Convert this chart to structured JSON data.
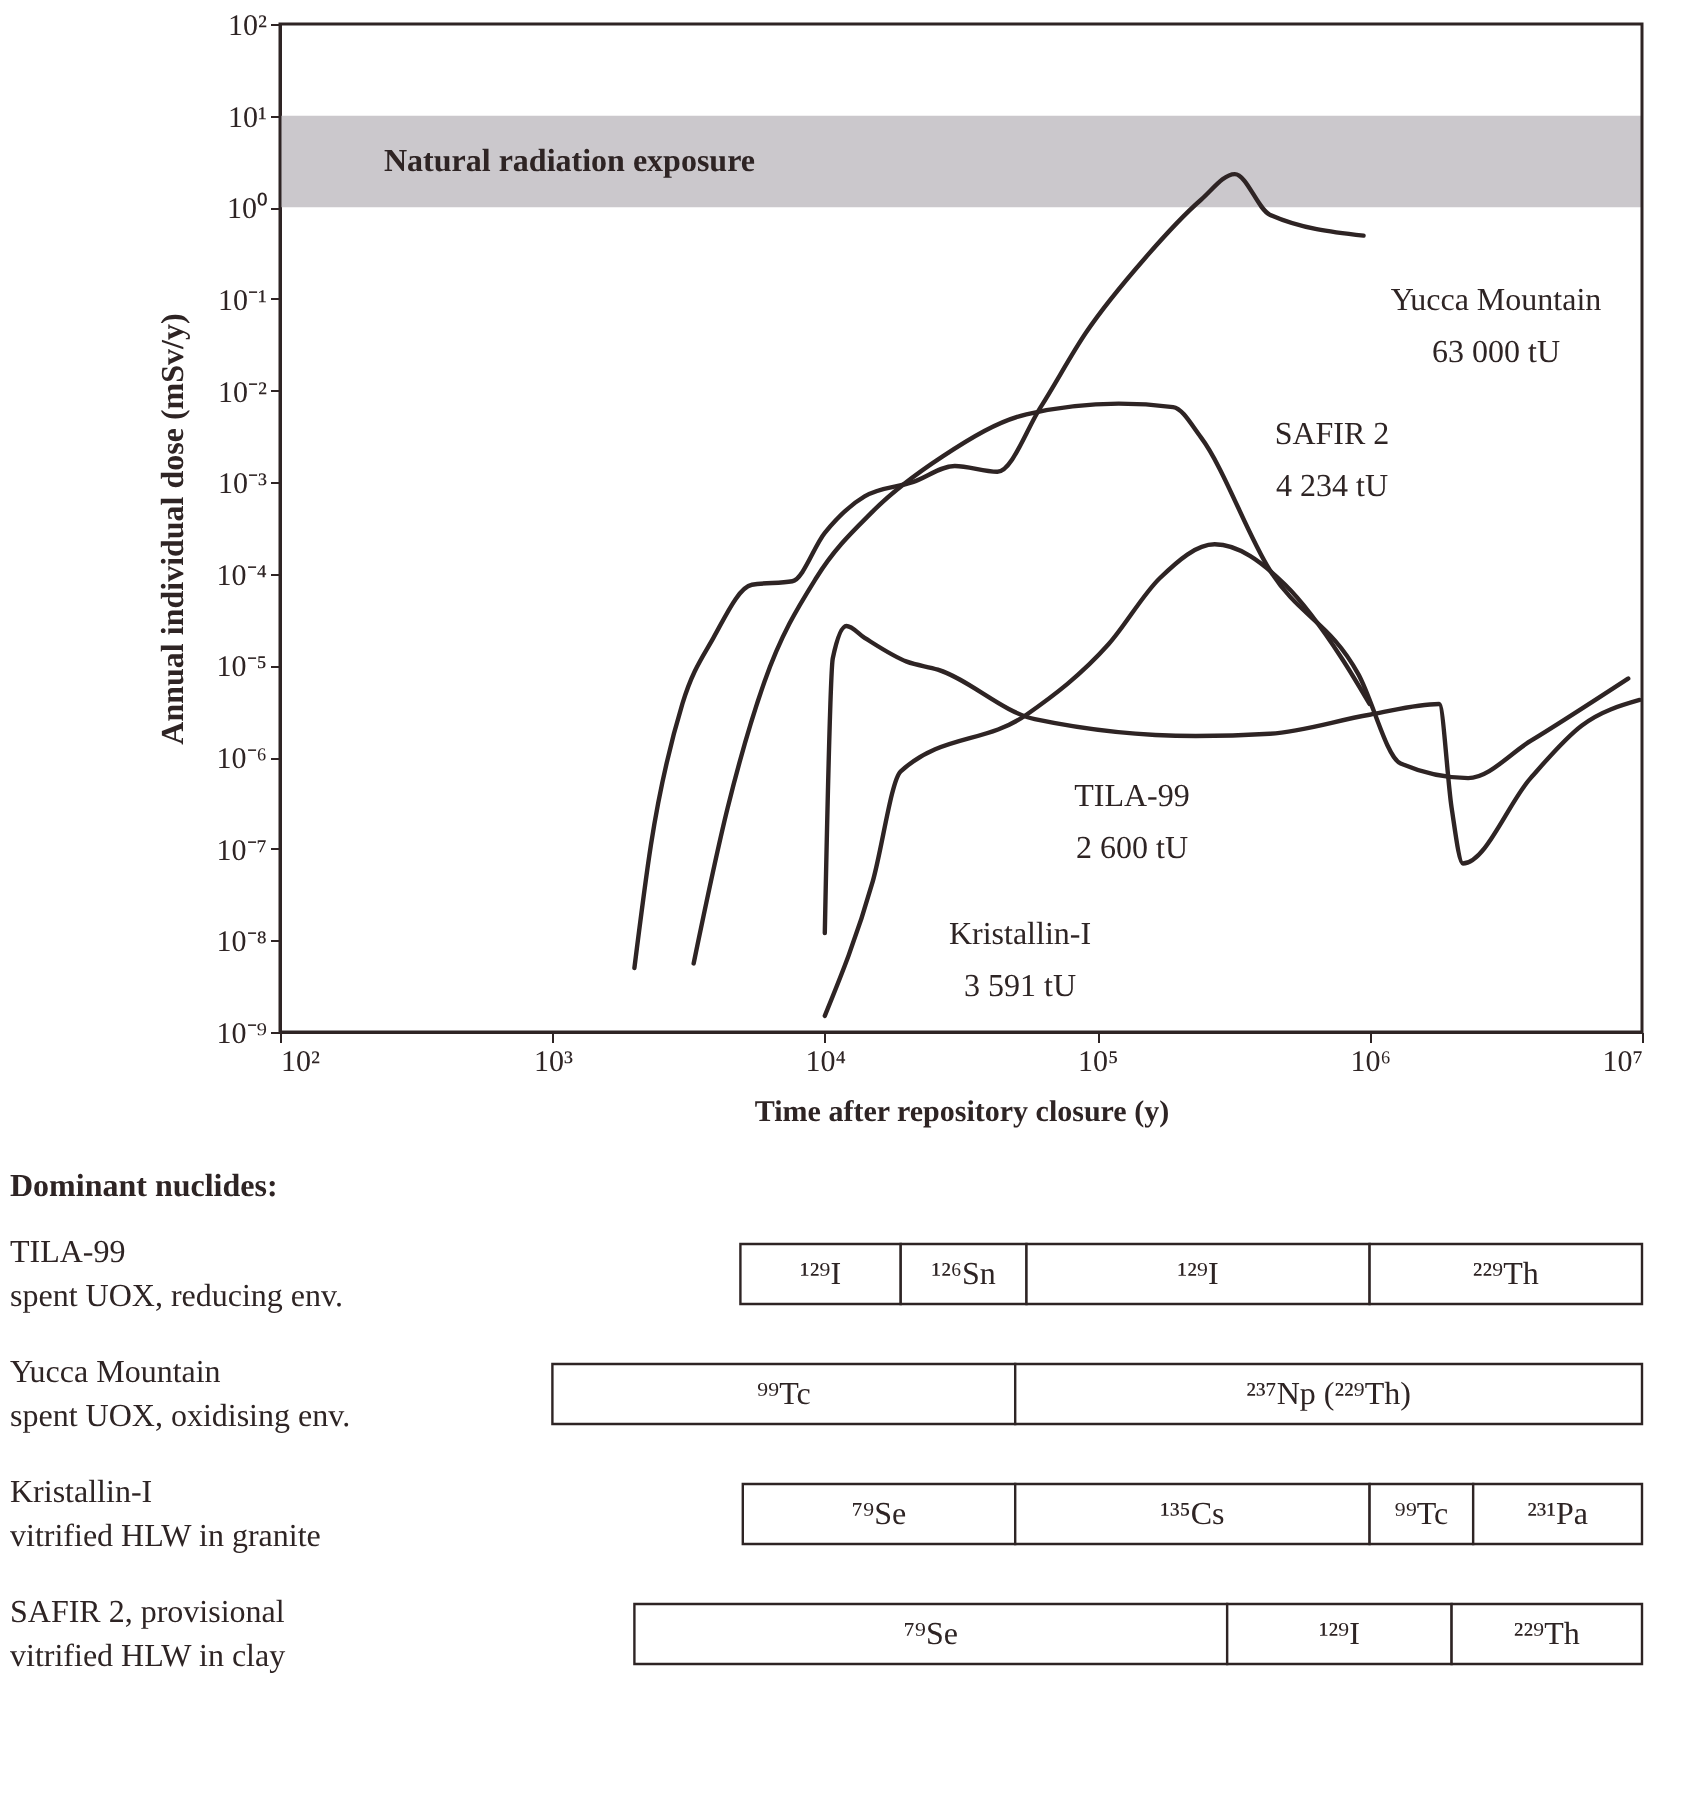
{
  "chart_data": [
    {
      "type": "line",
      "xlabel": "Time after repository closure (y)",
      "ylabel": "Annual individual dose (mSv/y)",
      "log": "xy",
      "grid": false,
      "line_style": "solid",
      "xlim": [
        100,
        10000000
      ],
      "ylim": [
        1e-09,
        100
      ],
      "xticks": [
        {
          "value": 100,
          "label": "10²"
        },
        {
          "value": 1000,
          "label": "10³"
        },
        {
          "value": 10000,
          "label": "10⁴"
        },
        {
          "value": 100000,
          "label": "10⁵"
        },
        {
          "value": 1000000,
          "label": "10⁶"
        },
        {
          "value": 10000000,
          "label": "10⁷"
        }
      ],
      "yticks": [
        {
          "value": 1e-09,
          "label": "10⁻⁹"
        },
        {
          "value": 1e-08,
          "label": "10⁻⁸"
        },
        {
          "value": 1e-07,
          "label": "10⁻⁷"
        },
        {
          "value": 1e-06,
          "label": "10⁻⁶"
        },
        {
          "value": 1e-05,
          "label": "10⁻⁵"
        },
        {
          "value": 0.0001,
          "label": "10⁻⁴"
        },
        {
          "value": 0.001,
          "label": "10⁻³"
        },
        {
          "value": 0.01,
          "label": "10⁻²"
        },
        {
          "value": 0.1,
          "label": "10⁻¹"
        },
        {
          "value": 1,
          "label": "10⁰"
        },
        {
          "value": 10,
          "label": "10¹"
        },
        {
          "value": 100,
          "label": "10²"
        }
      ],
      "bands": [
        {
          "axis": "y",
          "from": 1,
          "to": 10,
          "label": "Natural radiation exposure",
          "color": "#cbc8cc"
        }
      ],
      "series": [
        {
          "name": "Yucca Mountain\n63 000 tU",
          "color": "#2e2424",
          "x": [
            2000,
            2300,
            3000,
            3900,
            5400,
            7600,
            10000,
            14000,
            21000,
            30000,
            43000,
            62000,
            91000,
            150000,
            240000,
            320000,
            430000,
            950000
          ],
          "values": [
            5e-09,
            1.1e-07,
            3.8e-06,
            2e-05,
            7.6e-05,
            8.3e-05,
            0.00028,
            0.0007,
            0.001,
            0.0015,
            0.0013,
            0.0066,
            0.043,
            0.28,
            1.2,
            2.3,
            0.83,
            0.49
          ]
        },
        {
          "name": "SAFIR 2\n4 234 tU",
          "color": "#2e2424",
          "x": [
            3300,
            4400,
            6000,
            9300,
            15000,
            27000,
            55000,
            120000,
            190000,
            240000,
            430000,
            910000,
            1300000,
            2300000,
            3900000,
            8900000
          ],
          "values": [
            5.6e-09,
            2.8e-07,
            6.6e-06,
            9e-05,
            0.00048,
            0.0019,
            0.0055,
            0.0072,
            0.0066,
            0.0031,
            0.00011,
            8e-06,
            8.5e-07,
            5.9e-07,
            1.5e-06,
            7.2e-06
          ]
        },
        {
          "name": "TILA-99\n2 600 tU",
          "color": "#2e2424",
          "x": [
            10000,
            10700,
            12000,
            14000,
            20000,
            26000,
            59000,
            230000,
            430000,
            1000000,
            1800000,
            2000000,
            2200000,
            3900000,
            6000000,
            9800000
          ],
          "values": [
            1.2e-08,
            1.2e-05,
            2.7e-05,
            2e-05,
            1.1e-05,
            9e-06,
            2.6e-06,
            1.7e-06,
            1.8e-06,
            2.9e-06,
            3.8e-06,
            2.8e-07,
            6.9e-08,
            5.9e-07,
            2.2e-06,
            4.2e-06
          ]
        },
        {
          "name": "Kristallin-I\n3 591 tU",
          "color": "#2e2424",
          "x": [
            10000,
            15000,
            19000,
            55000,
            110000,
            170000,
            270000,
            490000,
            790000,
            1000000
          ],
          "values": [
            1.5e-09,
            4.4e-08,
            7e-07,
            2.9e-06,
            1.7e-05,
            9e-05,
            0.00021,
            7.6e-05,
            1.2e-05,
            3.8e-06
          ]
        }
      ]
    },
    {
      "type": "bar",
      "orientation": "horizontal",
      "title": "Dominant nuclides:",
      "log": "x",
      "xlim": [
        100,
        10000000
      ],
      "tick_labels": false,
      "categories": [
        "TILA-99\nspent UOX, reducing env.",
        "Yucca Mountain\nspent UOX, oxidising env.",
        "Kristallin-I\nvitrified HLW in granite",
        "SAFIR 2, provisional\nvitrified HLW in clay"
      ],
      "series": [
        {
          "color": "#ffffff",
          "base": [
            4900,
            1000,
            5000,
            2000
          ],
          "values": [
            14100,
            49000,
            45000,
            298000
          ],
          "value_labels": [
            "¹²⁹I",
            "⁹⁹Tc",
            "⁷⁹Se",
            "⁷⁹Se"
          ]
        },
        {
          "color": "#ffffff",
          "base": [
            19000,
            50000,
            50000,
            300000
          ],
          "values": [
            36000,
            9950000,
            950000,
            1700000
          ],
          "value_labels": [
            "¹²⁶Sn",
            "²³⁷Np (²²⁹Th)",
            "¹³⁵Cs",
            "¹²⁹I"
          ]
        },
        {
          "color": "#ffffff",
          "base": [
            55000,
            null,
            1000000,
            2000000
          ],
          "values": [
            945000,
            null,
            1400000,
            8000000
          ],
          "value_labels": [
            "¹²⁹I",
            null,
            "⁹⁹Tc",
            "²²⁹Th"
          ]
        },
        {
          "color": "#ffffff",
          "base": [
            1000000,
            null,
            2400000,
            null
          ],
          "values": [
            9000000,
            null,
            7600000,
            null
          ],
          "value_labels": [
            "²²⁹Th",
            null,
            "²³¹Pa",
            null
          ]
        }
      ]
    }
  ]
}
